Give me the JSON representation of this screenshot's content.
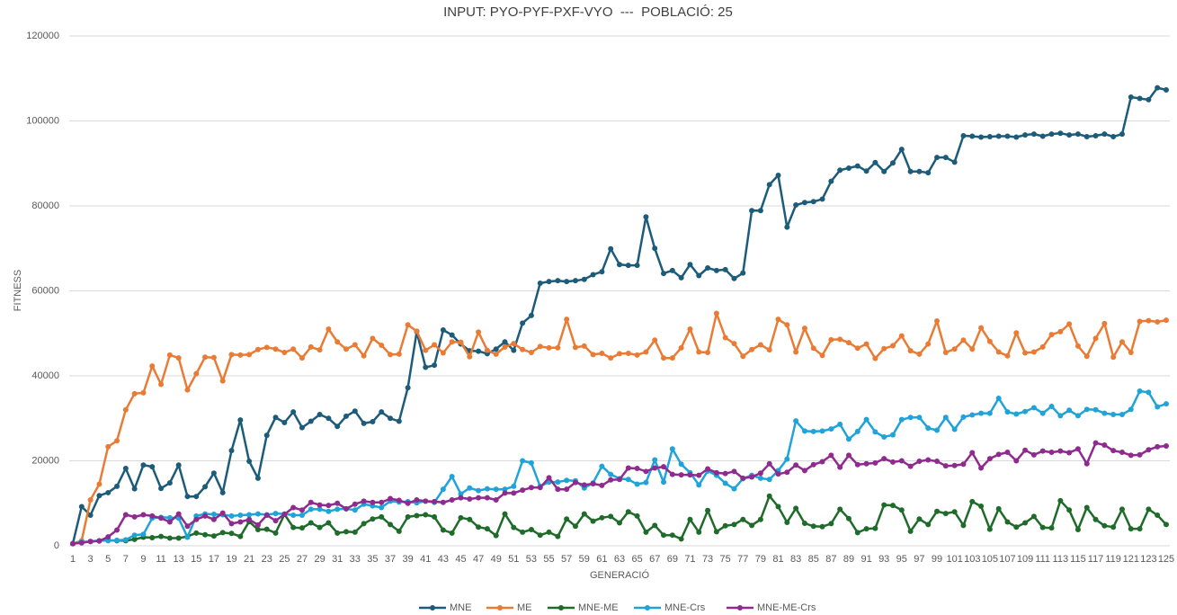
{
  "chart_data": {
    "type": "line",
    "title": "INPUT: PYO-PYF-PXF-VYO  ---  POBLACIÓ: 25",
    "x_label": "GENERACIÓ",
    "y_label": "FITNESS",
    "categories": [
      1,
      null,
      3,
      null,
      5,
      null,
      7,
      null,
      9,
      null,
      11,
      null,
      13,
      null,
      15,
      null,
      17,
      null,
      19,
      null,
      21,
      null,
      23,
      null,
      25,
      null,
      27,
      null,
      29,
      null,
      31,
      null,
      33,
      null,
      35,
      null,
      37,
      null,
      39,
      null,
      41,
      null,
      43,
      null,
      45,
      null,
      47,
      null,
      49,
      null,
      51,
      null,
      53,
      null,
      55,
      null,
      57,
      null,
      59,
      null,
      61,
      null,
      63,
      null,
      65,
      null,
      67,
      null,
      69,
      null,
      71,
      null,
      73,
      null,
      75,
      null,
      77,
      null,
      79,
      null,
      81,
      null,
      83,
      null,
      85,
      null,
      87,
      null,
      89,
      null,
      91,
      null,
      93,
      null,
      95,
      null,
      97,
      null,
      99,
      null,
      101,
      null,
      103,
      null,
      105,
      null,
      107,
      null,
      109,
      null,
      111,
      null,
      113,
      null,
      115,
      null,
      117,
      null,
      119,
      null,
      121,
      null,
      123,
      null,
      125
    ],
    "ylim": [
      0,
      120000
    ],
    "yticks": [
      0,
      20000,
      40000,
      60000,
      80000,
      100000,
      120000
    ],
    "grid": true,
    "legend": "bottom",
    "series": [
      {
        "name": "MNE",
        "color": "#1c5c7a",
        "values": [
          500,
          9200,
          7200,
          11800,
          12500,
          14000,
          18200,
          13400,
          19000,
          18600,
          13500,
          14800,
          19000,
          11600,
          11600,
          13900,
          17100,
          12500,
          22400,
          29600,
          19900,
          15900,
          26000,
          30200,
          29000,
          31500,
          27800,
          29300,
          30900,
          30000,
          28100,
          30500,
          31700,
          28800,
          29200,
          31500,
          30000,
          29300,
          37200,
          50400,
          42000,
          42500,
          50800,
          49600,
          47500,
          45900,
          45800,
          45200,
          46300,
          48000,
          46000,
          52400,
          54200,
          61800,
          62200,
          62400,
          62200,
          62400,
          62700,
          63800,
          64500,
          69900,
          66200,
          66000,
          66000,
          77400,
          70000,
          64100,
          64800,
          63100,
          66200,
          63600,
          65400,
          64800,
          65000,
          62900,
          64200,
          78900,
          78900,
          85000,
          87200,
          75000,
          80200,
          80800,
          81000,
          81600,
          85800,
          88400,
          88900,
          89400,
          88200,
          90200,
          88100,
          90100,
          93300,
          88100,
          88100,
          87800,
          91400,
          91400,
          90300,
          96500,
          96400,
          96200,
          96300,
          96400,
          96400,
          96200,
          96700,
          96900,
          96400,
          96900,
          97100,
          96700,
          96900,
          96300,
          96500,
          96900,
          96300,
          96900,
          105600,
          105300,
          105000,
          107800,
          107300
        ]
      },
      {
        "name": "ME",
        "color": "#e97b35",
        "values": [
          500,
          1200,
          10800,
          14500,
          23300,
          24700,
          32000,
          35800,
          36000,
          42300,
          38000,
          44900,
          44200,
          36700,
          40500,
          44400,
          44300,
          38800,
          45000,
          44900,
          45000,
          46200,
          46700,
          46300,
          45500,
          46300,
          44200,
          46800,
          46100,
          51000,
          48000,
          46300,
          47300,
          44700,
          48800,
          47200,
          45000,
          45100,
          52000,
          50500,
          46000,
          47300,
          45400,
          48000,
          47900,
          44500,
          50300,
          46000,
          45100,
          46800,
          47600,
          46200,
          45500,
          46900,
          46600,
          46600,
          53300,
          46700,
          47000,
          45000,
          45300,
          44200,
          45200,
          45300,
          44900,
          45600,
          48400,
          44200,
          44200,
          46600,
          51000,
          45600,
          45500,
          54700,
          49000,
          47600,
          44600,
          46200,
          47300,
          46100,
          53300,
          52000,
          45600,
          51200,
          46500,
          44800,
          48500,
          48600,
          47800,
          46500,
          47500,
          44100,
          46400,
          47100,
          49400,
          45900,
          45100,
          47500,
          52900,
          45500,
          46300,
          48400,
          46300,
          51300,
          48100,
          45600,
          44700,
          50100,
          45400,
          45600,
          46800,
          49700,
          50400,
          52200,
          47000,
          44600,
          48800,
          52300,
          44400,
          48000,
          45500,
          52800,
          53000,
          52700,
          53100
        ]
      },
      {
        "name": "MNE-ME",
        "color": "#1e6b2a",
        "values": [
          500,
          800,
          1000,
          1200,
          1300,
          1200,
          1200,
          1500,
          2000,
          1900,
          2200,
          1800,
          1800,
          2200,
          3000,
          2600,
          2300,
          3100,
          2900,
          2200,
          5700,
          3800,
          3900,
          3000,
          7400,
          4300,
          4200,
          5400,
          4300,
          5400,
          3000,
          3300,
          3200,
          5200,
          6300,
          6800,
          5000,
          3400,
          6800,
          7100,
          7300,
          6800,
          3700,
          3000,
          6600,
          6200,
          4400,
          4000,
          2400,
          7500,
          4300,
          3200,
          3800,
          2500,
          3200,
          2200,
          6300,
          4600,
          7500,
          5800,
          6600,
          6900,
          5400,
          8000,
          7000,
          3200,
          4800,
          2500,
          2500,
          1600,
          6200,
          3200,
          8300,
          3300,
          4700,
          5000,
          6200,
          4800,
          6200,
          11700,
          9200,
          5500,
          8800,
          5300,
          4600,
          4500,
          5200,
          8600,
          6400,
          3100,
          4000,
          4100,
          9600,
          9500,
          8400,
          3400,
          6300,
          5000,
          8100,
          7600,
          8000,
          4800,
          10400,
          9300,
          3900,
          8700,
          5600,
          4400,
          5400,
          6900,
          4300,
          4200,
          10600,
          8400,
          3800,
          9000,
          6200,
          4700,
          4400,
          8600,
          4000,
          4000,
          8600,
          7200,
          5000
        ]
      },
      {
        "name": "MNE-Crs",
        "color": "#1fa3d8",
        "values": [
          500,
          900,
          1000,
          1200,
          1200,
          1300,
          1400,
          2500,
          2700,
          6500,
          6700,
          6600,
          6500,
          2000,
          7000,
          7500,
          7400,
          7300,
          7000,
          7200,
          7300,
          7500,
          7300,
          7600,
          7500,
          7200,
          7200,
          8600,
          8600,
          8100,
          8600,
          8700,
          8400,
          9800,
          9400,
          9000,
          10500,
          10300,
          10400,
          10100,
          10500,
          10200,
          13300,
          16300,
          12200,
          13600,
          13000,
          13400,
          13300,
          13300,
          14000,
          20000,
          19500,
          14000,
          15000,
          15000,
          15400,
          15300,
          13600,
          14800,
          18700,
          16800,
          15800,
          15600,
          14500,
          14900,
          20200,
          15000,
          22800,
          19200,
          17200,
          14300,
          17600,
          16600,
          14700,
          13400,
          15800,
          16600,
          15900,
          15600,
          17700,
          20400,
          29400,
          27000,
          26900,
          27000,
          27500,
          28600,
          25100,
          26900,
          29700,
          26800,
          25600,
          26100,
          29700,
          30200,
          30200,
          27700,
          27200,
          30200,
          27400,
          30300,
          30800,
          31200,
          31200,
          34700,
          31500,
          31000,
          31600,
          32500,
          31200,
          32800,
          30600,
          31900,
          30600,
          32100,
          32000,
          31200,
          30900,
          30900,
          32100,
          36400,
          36100,
          32700,
          33400
        ]
      },
      {
        "name": "MNE-ME-Crs",
        "color": "#8f2a8f",
        "values": [
          500,
          700,
          1000,
          1100,
          2100,
          3700,
          7300,
          6800,
          7300,
          7000,
          6500,
          5600,
          7500,
          4600,
          6200,
          7000,
          6200,
          7700,
          5200,
          5600,
          6200,
          4900,
          7200,
          5900,
          7400,
          9000,
          8400,
          10200,
          9600,
          9500,
          10000,
          8700,
          9800,
          10500,
          10200,
          10200,
          11100,
          10700,
          10000,
          10800,
          10500,
          10400,
          10200,
          10800,
          11300,
          11000,
          11300,
          11300,
          10800,
          12400,
          12400,
          13100,
          13700,
          13700,
          16000,
          13300,
          13300,
          14900,
          14300,
          14600,
          14200,
          15500,
          15600,
          18300,
          18200,
          17500,
          18300,
          18600,
          16800,
          16700,
          16700,
          16600,
          18100,
          17200,
          17000,
          17500,
          15900,
          16200,
          17100,
          19300,
          16900,
          17300,
          19000,
          17700,
          19100,
          19800,
          21300,
          18500,
          21300,
          19100,
          19300,
          19500,
          20500,
          19700,
          20000,
          18700,
          19900,
          20200,
          19900,
          18800,
          18900,
          19200,
          21900,
          18300,
          20500,
          21500,
          22000,
          20000,
          22500,
          21400,
          22300,
          22000,
          22300,
          21900,
          22800,
          19300,
          24200,
          23700,
          22400,
          22000,
          21300,
          21400,
          22600,
          23300,
          23500
        ]
      }
    ]
  }
}
